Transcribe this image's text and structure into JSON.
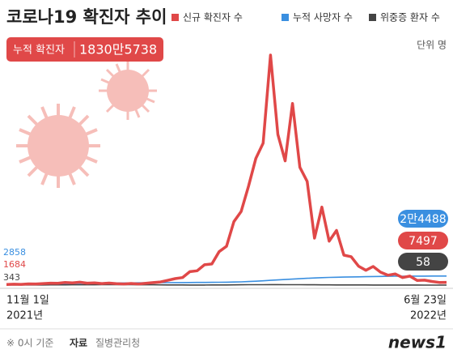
{
  "chart_data": {
    "type": "line",
    "title": "코로나19 확진자 추이",
    "badge": {
      "label": "누적 확진자",
      "value": "1830만5738"
    },
    "unit": "단위 명",
    "start_year": "2021년",
    "end_year": "2022년",
    "note": "※ 0시 기준",
    "source_label": "자료",
    "source": "질병관리청",
    "logo": "news1",
    "categories": [
      "11월 1일",
      null,
      null,
      null,
      null,
      null,
      null,
      null,
      null,
      null,
      null,
      null,
      null,
      null,
      null,
      null,
      null,
      null,
      null,
      null,
      null,
      null,
      null,
      null,
      null,
      null,
      null,
      null,
      null,
      null,
      null,
      null,
      null,
      null,
      null,
      null,
      null,
      null,
      null,
      null,
      null,
      null,
      null,
      null,
      null,
      null,
      null,
      null,
      null,
      null,
      null,
      null,
      null,
      null,
      null,
      null,
      null,
      null,
      null,
      null,
      "6월 23일"
    ],
    "series": [
      {
        "name": "신규 확진자 수",
        "color": "#e04848",
        "values": [
          1684,
          2500,
          2000,
          3200,
          3000,
          4100,
          5300,
          4900,
          7100,
          6200,
          7800,
          5300,
          6200,
          4200,
          5400,
          3900,
          3000,
          4400,
          3100,
          4900,
          6800,
          8600,
          13000,
          17500,
          20300,
          36300,
          38700,
          54900,
          57100,
          90400,
          104800,
          171400,
          198800,
          266800,
          342400,
          383600,
          621328,
          407000,
          335500,
          490800,
          318100,
          280200,
          127000,
          210700,
          118500,
          147700,
          81000,
          76800,
          51100,
          40100,
          50400,
          35100,
          26700,
          30100,
          20400,
          24300,
          12500,
          13300,
          9800,
          7200,
          7497
        ]
      },
      {
        "name": "누적 사망자 수",
        "color": "#3a8fe0",
        "values": [
          2858,
          2920,
          3010,
          3100,
          3230,
          3380,
          3580,
          3790,
          4020,
          4250,
          4520,
          4770,
          5015,
          5250,
          5450,
          5625,
          5770,
          5930,
          6080,
          6230,
          6380,
          6500,
          6600,
          6755,
          6870,
          7000,
          7140,
          7300,
          7480,
          7700,
          7960,
          8266,
          8800,
          9600,
          10600,
          11700,
          12900,
          14000,
          15200,
          16230,
          17200,
          18300,
          19300,
          20100,
          20800,
          21300,
          21700,
          22000,
          22400,
          22800,
          23200,
          23500,
          23800,
          24000,
          24150,
          24258,
          24300,
          24350,
          24400,
          24450,
          24488
        ],
        "value_labels": [
          null,
          null,
          null,
          null,
          null,
          null,
          null,
          null,
          null,
          null,
          null,
          null,
          null,
          null,
          null,
          null,
          null,
          null,
          null,
          null,
          null,
          null,
          null,
          null,
          null,
          null,
          null,
          null,
          null,
          null,
          null,
          null,
          null,
          null,
          null,
          null,
          null,
          null,
          null,
          null,
          null,
          null,
          null,
          null,
          null,
          null,
          null,
          null,
          null,
          null,
          null,
          null,
          null,
          null,
          null,
          null,
          null,
          null,
          null,
          null,
          "2만4488"
        ]
      },
      {
        "name": "위중증 환자 수",
        "color": "#444444",
        "values": [
          343,
          360,
          380,
          410,
          450,
          500,
          580,
          650,
          730,
          800,
          860,
          900,
          980,
          1050,
          1080,
          1100,
          1080,
          1050,
          950,
          880,
          800,
          650,
          520,
          430,
          380,
          300,
          280,
          300,
          350,
          400,
          480,
          650,
          800,
          1000,
          1100,
          1200,
          1300,
          1250,
          1150,
          1100,
          1000,
          950,
          850,
          700,
          600,
          500,
          430,
          380,
          350,
          330,
          310,
          290,
          280,
          260,
          240,
          200,
          120,
          100,
          90,
          70,
          58
        ]
      }
    ]
  }
}
